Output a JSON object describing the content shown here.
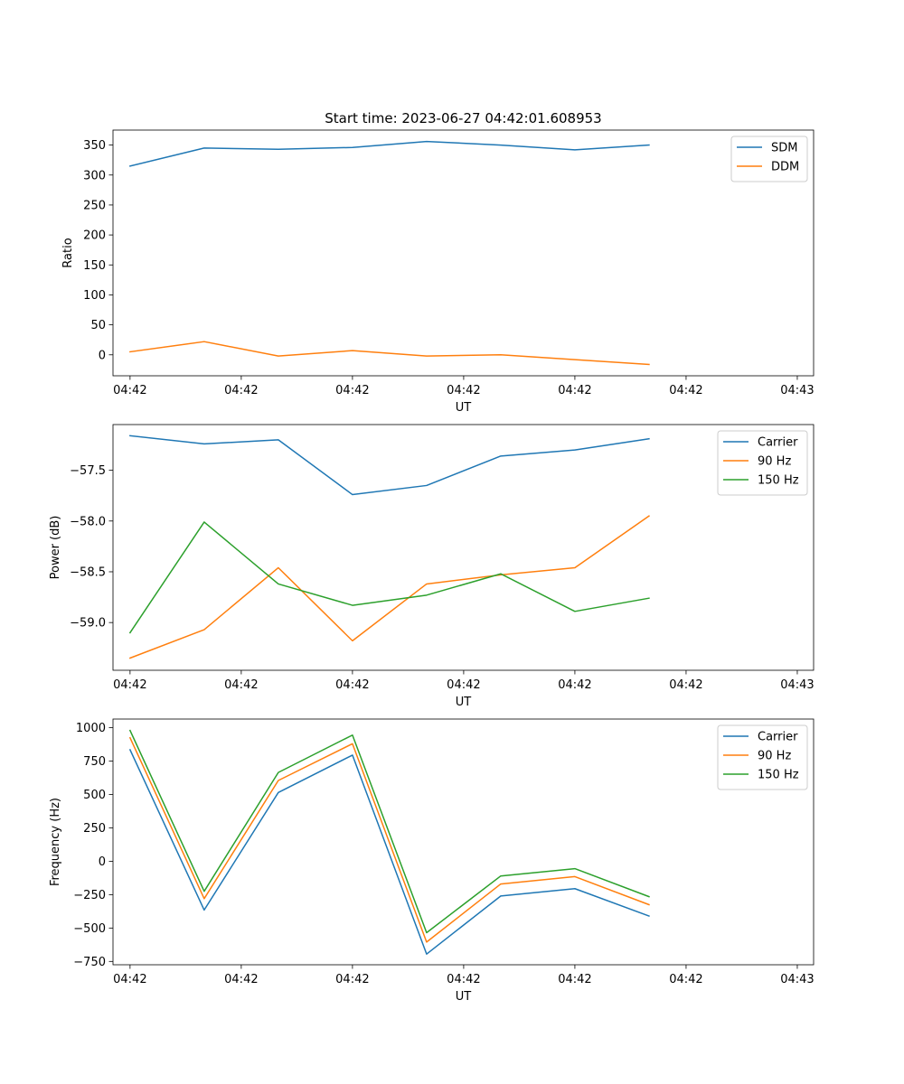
{
  "figure_title": "Start time: 2023-06-27 04:42:01.608953",
  "colors": {
    "blue": "#1f77b4",
    "orange": "#ff7f0e",
    "green": "#2ca02c"
  },
  "chart_data": [
    {
      "type": "line",
      "title": "Start time: 2023-06-27 04:42:01.608953",
      "xlabel": "UT",
      "ylabel": "Ratio",
      "x": [
        1,
        2,
        3,
        4,
        5,
        6,
        7,
        8
      ],
      "xlim": [
        0.77,
        10.22
      ],
      "xticks": [
        1,
        2.5,
        4,
        5.5,
        7,
        8.5,
        10
      ],
      "xticklabels": [
        "04:42",
        "04:42",
        "04:42",
        "04:42",
        "04:42",
        "04:42",
        "04:43"
      ],
      "ylim": [
        -35,
        375
      ],
      "yticks": [
        0,
        50,
        100,
        150,
        200,
        250,
        300,
        350
      ],
      "yticklabels": [
        "0",
        "50",
        "100",
        "150",
        "200",
        "250",
        "300",
        "350"
      ],
      "legend": "top-right",
      "series": [
        {
          "name": "SDM",
          "color": "#1f77b4",
          "values": [
            315,
            345,
            343,
            346,
            356,
            350,
            342,
            350
          ]
        },
        {
          "name": "DDM",
          "color": "#ff7f0e",
          "values": [
            5,
            22,
            -2,
            7,
            -2,
            0,
            -8,
            -16
          ]
        }
      ]
    },
    {
      "type": "line",
      "title": "",
      "xlabel": "UT",
      "ylabel": "Power (dB)",
      "x": [
        1,
        2,
        3,
        4,
        5,
        6,
        7,
        8
      ],
      "xlim": [
        0.77,
        10.22
      ],
      "xticks": [
        1,
        2.5,
        4,
        5.5,
        7,
        8.5,
        10
      ],
      "xticklabels": [
        "04:42",
        "04:42",
        "04:42",
        "04:42",
        "04:42",
        "04:42",
        "04:43"
      ],
      "ylim": [
        -59.47,
        -57.05
      ],
      "yticks": [
        -59.0,
        -58.5,
        -58.0,
        -57.5
      ],
      "yticklabels": [
        "−59.0",
        "−58.5",
        "−58.0",
        "−57.5"
      ],
      "legend": "top-right",
      "series": [
        {
          "name": "Carrier",
          "color": "#1f77b4",
          "values": [
            -57.16,
            -57.24,
            -57.2,
            -57.74,
            -57.65,
            -57.36,
            -57.3,
            -57.19
          ]
        },
        {
          "name": "90 Hz",
          "color": "#ff7f0e",
          "values": [
            -59.35,
            -59.07,
            -58.46,
            -59.18,
            -58.62,
            -58.53,
            -58.46,
            -57.95
          ]
        },
        {
          "name": "150 Hz",
          "color": "#2ca02c",
          "values": [
            -59.1,
            -58.01,
            -58.62,
            -58.83,
            -58.73,
            -58.52,
            -58.89,
            -58.76
          ]
        }
      ]
    },
    {
      "type": "line",
      "title": "",
      "xlabel": "UT",
      "ylabel": "Frequency (Hz)",
      "x": [
        1,
        2,
        3,
        4,
        5,
        6,
        7,
        8
      ],
      "xlim": [
        0.77,
        10.22
      ],
      "xticks": [
        1,
        2.5,
        4,
        5.5,
        7,
        8.5,
        10
      ],
      "xticklabels": [
        "04:42",
        "04:42",
        "04:42",
        "04:42",
        "04:42",
        "04:42",
        "04:43"
      ],
      "ylim": [
        -775,
        1065
      ],
      "yticks": [
        -750,
        -500,
        -250,
        0,
        250,
        500,
        750,
        1000
      ],
      "yticklabels": [
        "−750",
        "−500",
        "−250",
        "0",
        "250",
        "500",
        "750",
        "1000"
      ],
      "legend": "top-right",
      "series": [
        {
          "name": "Carrier",
          "color": "#1f77b4",
          "values": [
            835,
            -365,
            515,
            795,
            -695,
            -260,
            -205,
            -410
          ]
        },
        {
          "name": "90 Hz",
          "color": "#ff7f0e",
          "values": [
            925,
            -280,
            605,
            880,
            -605,
            -170,
            -115,
            -325
          ]
        },
        {
          "name": "150 Hz",
          "color": "#2ca02c",
          "values": [
            980,
            -225,
            665,
            945,
            -535,
            -110,
            -55,
            -265
          ]
        }
      ]
    }
  ]
}
